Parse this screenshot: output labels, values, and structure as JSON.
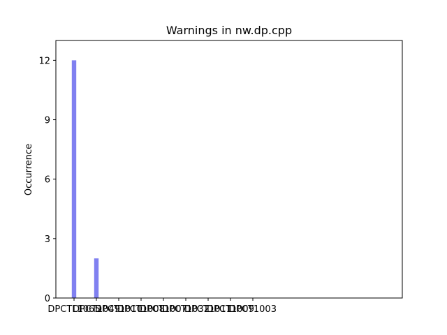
{
  "chart_data": {
    "type": "bar",
    "title": "Warnings in nw.dp.cpp",
    "xlabel": "",
    "ylabel": "Occurrence",
    "categories": [
      "DPCTL1065",
      "DPCT1049",
      "DPCT1010",
      "DPCT1008",
      "DPCT1007",
      "DPCT1032",
      "DPCT1011",
      "DPCT1009",
      "DPCT1003"
    ],
    "values": [
      12,
      2,
      0,
      0,
      0,
      0,
      0,
      0,
      0
    ],
    "ylim": [
      0,
      13
    ],
    "yticks": [
      0,
      3,
      6,
      9,
      12
    ],
    "bar_color": "#8080f0",
    "grid": false,
    "legend": "none"
  }
}
